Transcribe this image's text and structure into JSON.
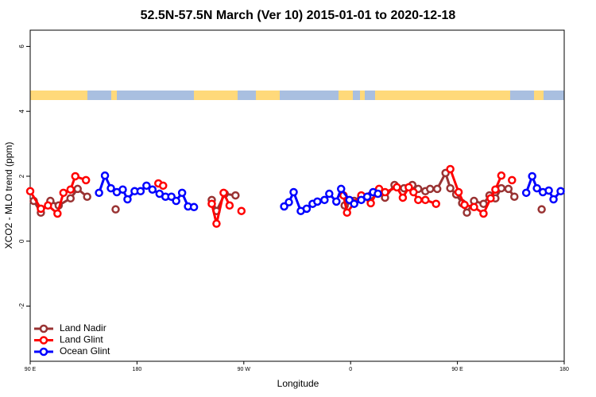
{
  "chart_data": {
    "type": "line",
    "title": "52.5N-57.5N March (Ver 10)   2015-01-01 to 2020-12-18",
    "x_label": "Longitude",
    "y_label": "XCO2 - MLO trend (ppm)",
    "xlim": [
      -270,
      180
    ],
    "xticks": [
      {
        "value": -270,
        "label": "90 E"
      },
      {
        "value": -180,
        "label": "180"
      },
      {
        "value": -90,
        "label": "90 W"
      },
      0,
      {
        "value": 90,
        "label": "90 E"
      },
      {
        "value": 180,
        "label": "180"
      }
    ],
    "ylim": [
      -3.7,
      6.5
    ],
    "yticks": [
      -2,
      0,
      2,
      4,
      6
    ],
    "legend": "bottomleft",
    "series": [
      {
        "name": "Land Nadir",
        "color": "#993333",
        "x": [
          -267,
          -261,
          -253,
          -246,
          -236,
          -230,
          -222,
          -210,
          -198,
          -150,
          -117,
          -113,
          -106,
          -97,
          -50,
          -5,
          3,
          9,
          17,
          23,
          29,
          37,
          45,
          52,
          57,
          63,
          67,
          73,
          80,
          84,
          89,
          94,
          98,
          104,
          112,
          117,
          122,
          127,
          133,
          138,
          150,
          161
        ],
        "values": [
          1.24,
          0.88,
          1.24,
          1.1,
          1.32,
          1.61,
          1.37,
          null,
          0.98,
          null,
          1.27,
          0.93,
          1.46,
          1.41,
          null,
          1.1,
          1.24,
          1.39,
          1.41,
          1.49,
          1.34,
          1.73,
          1.63,
          1.73,
          1.61,
          1.54,
          1.61,
          1.61,
          2.1,
          1.63,
          1.44,
          1.17,
          0.88,
          1.24,
          1.15,
          1.41,
          1.32,
          1.63,
          1.61,
          1.37,
          null,
          0.98
        ]
      },
      {
        "name": "Land Glint",
        "color": "#ff0000",
        "x": [
          -270,
          -261,
          -255,
          -247,
          -242,
          -236,
          -232,
          -223,
          -190,
          -162,
          -158,
          -135,
          -117,
          -113,
          -107,
          -102,
          -97,
          -92,
          -50,
          -6,
          -3,
          3,
          9,
          17,
          24,
          29,
          39,
          44,
          49,
          53,
          57,
          63,
          72,
          78,
          84,
          91,
          96,
          104,
          112,
          118,
          122,
          127,
          131,
          136
        ],
        "values": [
          1.54,
          1.0,
          1.1,
          0.85,
          1.49,
          1.59,
          2.0,
          1.88,
          null,
          1.78,
          1.71,
          null,
          1.15,
          0.54,
          1.49,
          1.1,
          null,
          0.93,
          null,
          1.41,
          0.88,
          1.17,
          1.41,
          1.17,
          1.61,
          1.51,
          1.66,
          1.34,
          1.66,
          1.51,
          1.27,
          1.27,
          1.15,
          null,
          2.22,
          1.51,
          1.12,
          1.05,
          0.85,
          1.32,
          1.59,
          2.02,
          null,
          1.88
        ]
      },
      {
        "name": "Ocean Glint",
        "color": "#0000ff",
        "x": [
          -212,
          -207,
          -202,
          -197,
          -192,
          -188,
          -182,
          -177,
          -172,
          -167,
          -161,
          -156,
          -151,
          -147,
          -142,
          -137,
          -132,
          -90,
          -56,
          -52,
          -48,
          -42,
          -37,
          -32,
          -28,
          -22,
          -18,
          -12,
          -8,
          -1,
          3,
          9,
          14,
          19,
          23,
          90,
          148,
          153,
          157,
          162,
          167,
          171,
          177
        ],
        "values": [
          1.49,
          2.02,
          1.63,
          1.51,
          1.59,
          1.29,
          1.54,
          1.54,
          1.71,
          1.59,
          1.46,
          1.37,
          1.37,
          1.24,
          1.49,
          1.07,
          1.05,
          null,
          1.07,
          1.2,
          1.51,
          0.93,
          1.0,
          1.15,
          1.22,
          1.27,
          1.46,
          1.22,
          1.61,
          1.27,
          1.15,
          1.27,
          1.37,
          1.51,
          1.46,
          null,
          1.49,
          2.0,
          1.63,
          1.51,
          1.56,
          1.29,
          1.54
        ]
      }
    ]
  }
}
